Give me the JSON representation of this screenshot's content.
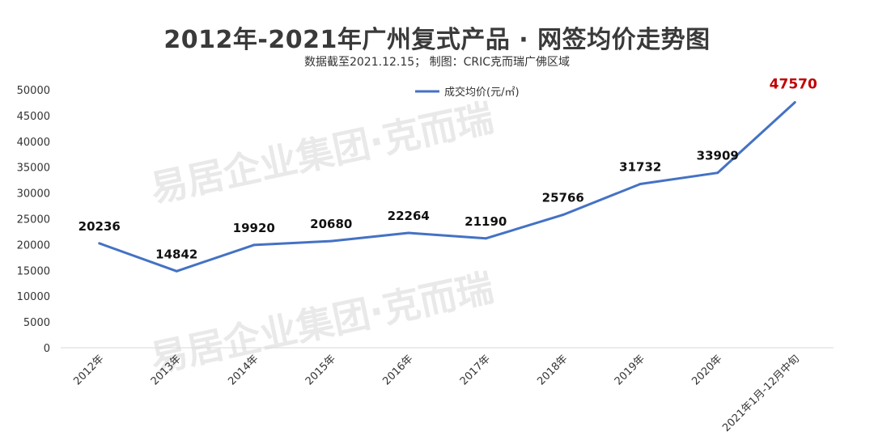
{
  "title": "2012年-2021年广州复式产品 · 网签均价走势图",
  "subtitle": "数据截至2021.12.15；   制图：CRIC克而瑞广佛区域",
  "watermark": "易居企业集团·克而瑞",
  "chart_data": {
    "type": "line",
    "categories": [
      "2012年",
      "2013年",
      "2014年",
      "2015年",
      "2016年",
      "2017年",
      "2018年",
      "2019年",
      "2020年",
      "2021年1月-12月中旬"
    ],
    "series": [
      {
        "name": "成交均价(元/㎡)",
        "values": [
          20236,
          14842,
          19920,
          20680,
          22264,
          21190,
          25766,
          31732,
          33909,
          47570
        ],
        "color": "#4472c4"
      }
    ],
    "ylim": [
      0,
      50000
    ],
    "yticks": [
      0,
      5000,
      10000,
      15000,
      20000,
      25000,
      30000,
      35000,
      40000,
      45000,
      50000
    ],
    "highlight_color": "#c00000",
    "legend_position": "top-center",
    "grid": false
  }
}
